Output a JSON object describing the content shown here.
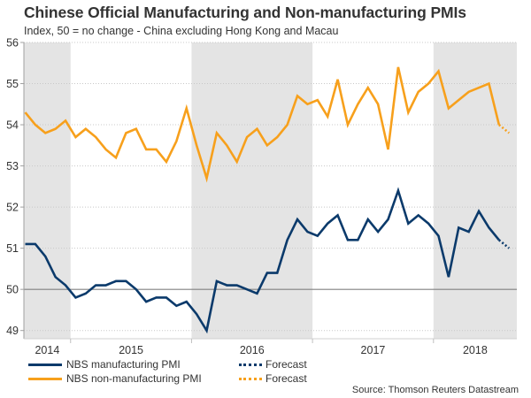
{
  "chart_data": {
    "type": "line",
    "title": "Chinese Official Manufacturing and Non-manufacturing PMIs",
    "subtitle": "Index, 50 = no change - China excluding Hong Kong and Macau",
    "source": "Source: Thomson Reuters Datastream",
    "xlabel": "",
    "ylabel": "",
    "ylim": [
      48.8,
      56
    ],
    "y_ticks": [
      49,
      50,
      51,
      52,
      53,
      54,
      55,
      56
    ],
    "reference_line": 50,
    "grid": true,
    "x_start": "2014-08",
    "x_end_forecast": "2018-08",
    "year_labels": [
      "2014",
      "2015",
      "2016",
      "2017",
      "2018"
    ],
    "shaded_years": [
      "2014",
      "2016",
      "2018"
    ],
    "x": [
      "2014-08",
      "2014-09",
      "2014-10",
      "2014-11",
      "2014-12",
      "2015-01",
      "2015-02",
      "2015-03",
      "2015-04",
      "2015-05",
      "2015-06",
      "2015-07",
      "2015-08",
      "2015-09",
      "2015-10",
      "2015-11",
      "2015-12",
      "2016-01",
      "2016-02",
      "2016-03",
      "2016-04",
      "2016-05",
      "2016-06",
      "2016-07",
      "2016-08",
      "2016-09",
      "2016-10",
      "2016-11",
      "2016-12",
      "2017-01",
      "2017-02",
      "2017-03",
      "2017-04",
      "2017-05",
      "2017-06",
      "2017-07",
      "2017-08",
      "2017-09",
      "2017-10",
      "2017-11",
      "2017-12",
      "2018-01",
      "2018-02",
      "2018-03",
      "2018-04",
      "2018-05",
      "2018-06",
      "2018-07"
    ],
    "series": [
      {
        "name": "NBS manufacturing PMI",
        "color": "#0b3a6b",
        "values": [
          51.1,
          51.1,
          50.8,
          50.3,
          50.1,
          49.8,
          49.9,
          50.1,
          50.1,
          50.2,
          50.2,
          50.0,
          49.7,
          49.8,
          49.8,
          49.6,
          49.7,
          49.4,
          49.0,
          50.2,
          50.1,
          50.1,
          50.0,
          49.9,
          50.4,
          50.4,
          51.2,
          51.7,
          51.4,
          51.3,
          51.6,
          51.8,
          51.2,
          51.2,
          51.7,
          51.4,
          51.7,
          52.4,
          51.6,
          51.8,
          51.6,
          51.3,
          50.3,
          51.5,
          51.4,
          51.9,
          51.5,
          51.2
        ],
        "forecast": {
          "label": "Forecast",
          "x": [
            "2018-07",
            "2018-08"
          ],
          "values": [
            51.2,
            51.0
          ]
        }
      },
      {
        "name": "NBS non-manufacturing PMI",
        "color": "#f7a01c",
        "values": [
          54.3,
          54.0,
          53.8,
          53.9,
          54.1,
          53.7,
          53.9,
          53.7,
          53.4,
          53.2,
          53.8,
          53.9,
          53.4,
          53.4,
          53.1,
          53.6,
          54.4,
          53.5,
          52.7,
          53.8,
          53.5,
          53.1,
          53.7,
          53.9,
          53.5,
          53.7,
          54.0,
          54.7,
          54.5,
          54.6,
          54.2,
          55.1,
          54.0,
          54.5,
          54.9,
          54.5,
          53.4,
          55.4,
          54.3,
          54.8,
          55.0,
          55.3,
          54.4,
          54.6,
          54.8,
          54.9,
          55.0,
          54.0
        ],
        "forecast": {
          "label": "Forecast",
          "x": [
            "2018-07",
            "2018-08"
          ],
          "values": [
            54.0,
            53.8
          ]
        }
      }
    ],
    "legend": {
      "placement": "bottom",
      "items": [
        {
          "label": "NBS manufacturing PMI",
          "style": "solid",
          "color": "#0b3a6b"
        },
        {
          "label": "NBS non-manufacturing PMI",
          "style": "solid",
          "color": "#f7a01c"
        },
        {
          "label": "Forecast",
          "style": "dotted",
          "color": "#0b3a6b"
        },
        {
          "label": "Forecast",
          "style": "dotted",
          "color": "#f7a01c"
        }
      ]
    },
    "colors": {
      "shade": "#e4e4e4",
      "grid": "#c8c8c8",
      "reference_line": "#808080",
      "axis": "#a0a0a0"
    }
  }
}
